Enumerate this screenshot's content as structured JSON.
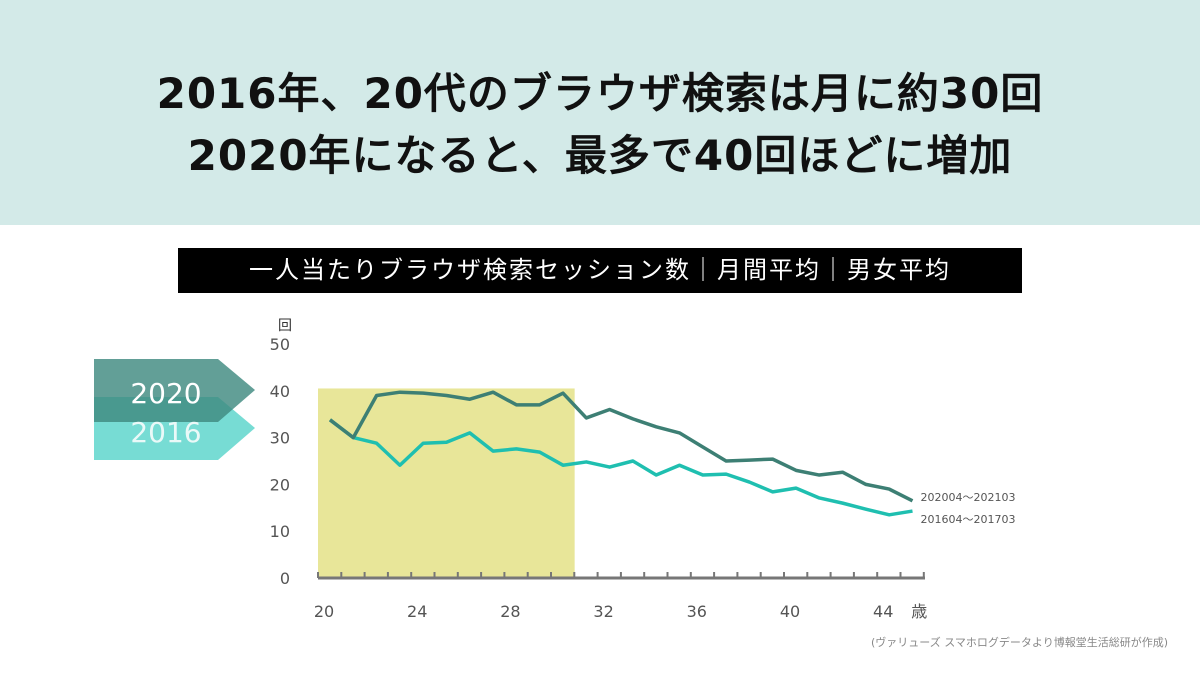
{
  "header": {
    "line1": "2016年、20代のブラウザ検索は月に約30回",
    "line2": "2020年になると、最多で40回ほどに増加"
  },
  "footnote": "(ヴァリューズ スマホログデータより博報堂生活総研が作成)",
  "chart_data": {
    "type": "line",
    "title": "一人当たりブラウザ検索セッション数｜月間平均｜男女平均",
    "ylabel": "回",
    "xlabel": "歳",
    "ylim": [
      0,
      50
    ],
    "yticks": [
      "0",
      "10",
      "20",
      "30",
      "40",
      "50"
    ],
    "xlim": [
      20,
      45
    ],
    "xticks": [
      "20",
      "24",
      "28",
      "32",
      "36",
      "40",
      "44"
    ],
    "x": [
      20,
      21,
      22,
      23,
      24,
      25,
      26,
      27,
      28,
      29,
      30,
      31,
      32,
      33,
      34,
      35,
      36,
      37,
      38,
      39,
      40,
      41,
      42,
      43,
      44,
      45
    ],
    "highlight_range": [
      20,
      30.5
    ],
    "highlight_color": "#e8e699",
    "series": [
      {
        "name": "202004～202103",
        "tag": "2020",
        "color": "#3d7f74",
        "values": [
          33.8,
          30,
          39,
          39.7,
          39.5,
          39,
          38.2,
          39.7,
          37,
          37,
          39.5,
          34.2,
          36,
          34,
          32.3,
          31,
          28,
          25,
          25.2,
          25.4,
          23,
          22,
          22.6,
          20,
          19,
          16.5
        ]
      },
      {
        "name": "201604～201703",
        "tag": "2016",
        "color": "#1fbfb0",
        "values": [
          33.8,
          30,
          28.8,
          24.1,
          28.8,
          29,
          31,
          27.1,
          27.6,
          26.9,
          24.1,
          24.8,
          23.7,
          25,
          22,
          24.1,
          22,
          22.2,
          20.5,
          18.4,
          19.2,
          17.1,
          16,
          14.7,
          13.5,
          14.3
        ]
      }
    ]
  }
}
